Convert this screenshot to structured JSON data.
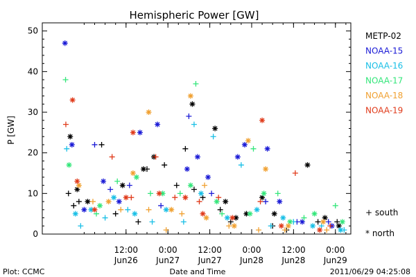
{
  "chart_data": {
    "type": "scatter",
    "title": "Hemispheric Power [GW]",
    "ylabel": "P [GW]",
    "xlabel": "Date and Time",
    "ylim": [
      0,
      52
    ],
    "xlim": [
      "2011-06-25T12:00",
      "2011-06-29T04:25"
    ],
    "yticks": [
      0,
      10,
      20,
      30,
      40,
      50
    ],
    "xticks": [
      {
        "time": "2011-06-26T12:00",
        "line1": "12:00",
        "line2": "Jun26"
      },
      {
        "time": "2011-06-27T00:00",
        "line1": "0:00",
        "line2": "Jun27"
      },
      {
        "time": "2011-06-27T12:00",
        "line1": "12:00",
        "line2": "Jun27"
      },
      {
        "time": "2011-06-28T00:00",
        "line1": "0:00",
        "line2": "Jun28"
      },
      {
        "time": "2011-06-28T12:00",
        "line1": "12:00",
        "line2": "Jun28"
      },
      {
        "time": "2011-06-29T00:00",
        "line1": "0:00",
        "line2": "Jun29"
      }
    ],
    "grid": false,
    "legend_position": "right",
    "marker_legend": [
      {
        "symbol": "+",
        "label": "south"
      },
      {
        "symbol": "*",
        "label": "north"
      }
    ],
    "series": [
      {
        "name": "METP-02",
        "color": "#000000",
        "south": [
          [
            "2011-06-25T19:30",
            10
          ],
          [
            "2011-06-25T21:00",
            7
          ],
          [
            "2011-06-25T22:30",
            8
          ],
          [
            "2011-06-26T05:00",
            22
          ],
          [
            "2011-06-26T09:00",
            5
          ],
          [
            "2011-06-26T15:30",
            3
          ],
          [
            "2011-06-26T18:00",
            16
          ],
          [
            "2011-06-26T23:00",
            17
          ],
          [
            "2011-06-27T02:30",
            12
          ],
          [
            "2011-06-27T05:00",
            21
          ],
          [
            "2011-06-27T07:30",
            11
          ],
          [
            "2011-06-27T10:00",
            9
          ],
          [
            "2011-06-27T15:00",
            6
          ],
          [
            "2011-06-27T18:00",
            3
          ],
          [
            "2011-06-28T06:00",
            2
          ],
          [
            "2011-06-28T10:00",
            1
          ],
          [
            "2011-06-28T19:00",
            3
          ],
          [
            "2011-06-29T00:30",
            3
          ]
        ],
        "north": [
          [
            "2011-06-25T20:00",
            24
          ],
          [
            "2011-06-25T22:00",
            11
          ],
          [
            "2011-06-26T01:00",
            8
          ],
          [
            "2011-06-26T11:00",
            12
          ],
          [
            "2011-06-26T17:00",
            16
          ],
          [
            "2011-06-26T20:00",
            19
          ],
          [
            "2011-06-27T07:00",
            32
          ],
          [
            "2011-06-27T13:30",
            26
          ],
          [
            "2011-06-27T16:30",
            8
          ],
          [
            "2011-06-27T19:30",
            4
          ],
          [
            "2011-06-27T22:30",
            5
          ],
          [
            "2011-06-28T03:00",
            9
          ],
          [
            "2011-06-28T06:30",
            5
          ],
          [
            "2011-06-28T16:00",
            17
          ],
          [
            "2011-06-28T21:00",
            4
          ],
          [
            "2011-06-29T01:00",
            2
          ]
        ]
      },
      {
        "name": "NOAA-15",
        "color": "#1a1ad6",
        "south": [
          [
            "2011-06-26T03:00",
            22
          ],
          [
            "2011-06-26T07:30",
            11
          ],
          [
            "2011-06-26T13:00",
            12
          ],
          [
            "2011-06-26T22:00",
            7
          ],
          [
            "2011-06-27T06:00",
            29
          ],
          [
            "2011-06-27T12:30",
            10
          ],
          [
            "2011-06-28T04:00",
            8
          ],
          [
            "2011-06-28T13:00",
            3
          ],
          [
            "2011-06-28T22:00",
            3
          ]
        ],
        "north": [
          [
            "2011-06-25T18:30",
            47
          ],
          [
            "2011-06-25T20:30",
            22
          ],
          [
            "2011-06-26T00:00",
            6
          ],
          [
            "2011-06-26T05:30",
            13
          ],
          [
            "2011-06-26T10:00",
            8
          ],
          [
            "2011-06-26T16:00",
            25
          ],
          [
            "2011-06-26T21:00",
            27
          ],
          [
            "2011-06-27T05:30",
            16
          ],
          [
            "2011-06-27T08:30",
            19
          ],
          [
            "2011-06-27T11:30",
            14
          ],
          [
            "2011-06-27T20:00",
            19
          ],
          [
            "2011-06-27T22:00",
            22
          ],
          [
            "2011-06-28T04:30",
            21
          ],
          [
            "2011-06-28T08:00",
            8
          ],
          [
            "2011-06-28T14:30",
            3
          ],
          [
            "2011-06-28T23:00",
            2
          ]
        ]
      },
      {
        "name": "NOAA-16",
        "color": "#19bfe6",
        "south": [
          [
            "2011-06-25T19:00",
            21
          ],
          [
            "2011-06-25T23:00",
            2
          ],
          [
            "2011-06-26T06:00",
            4
          ],
          [
            "2011-06-26T12:30",
            6
          ],
          [
            "2011-06-26T19:30",
            3
          ],
          [
            "2011-06-27T04:30",
            3
          ],
          [
            "2011-06-27T07:30",
            27
          ],
          [
            "2011-06-27T13:00",
            24
          ],
          [
            "2011-06-27T21:00",
            17
          ],
          [
            "2011-06-28T05:30",
            2
          ],
          [
            "2011-06-28T12:00",
            3
          ],
          [
            "2011-06-28T20:00",
            2
          ],
          [
            "2011-06-29T02:30",
            1
          ]
        ],
        "north": [
          [
            "2011-06-25T21:30",
            5
          ],
          [
            "2011-06-26T02:00",
            6
          ],
          [
            "2011-06-26T08:30",
            9
          ],
          [
            "2011-06-26T14:30",
            5
          ],
          [
            "2011-06-26T23:30",
            6
          ],
          [
            "2011-06-27T09:30",
            10
          ],
          [
            "2011-06-27T17:00",
            4
          ],
          [
            "2011-06-28T01:30",
            6
          ],
          [
            "2011-06-28T09:00",
            4
          ],
          [
            "2011-06-28T17:30",
            2
          ],
          [
            "2011-06-29T01:30",
            1
          ]
        ]
      },
      {
        "name": "NOAA-17",
        "color": "#33e67a",
        "south": [
          [
            "2011-06-25T18:40",
            38
          ],
          [
            "2011-06-26T03:30",
            5
          ],
          [
            "2011-06-26T09:30",
            13
          ],
          [
            "2011-06-26T19:00",
            10
          ],
          [
            "2011-06-27T03:30",
            10
          ],
          [
            "2011-06-27T08:00",
            37
          ],
          [
            "2011-06-27T15:30",
            5
          ],
          [
            "2011-06-28T00:30",
            21
          ],
          [
            "2011-06-28T07:30",
            10
          ],
          [
            "2011-06-28T15:00",
            4
          ],
          [
            "2011-06-29T00:00",
            7
          ]
        ],
        "north": [
          [
            "2011-06-25T19:40",
            17
          ],
          [
            "2011-06-26T04:30",
            7
          ],
          [
            "2011-06-26T15:00",
            14
          ],
          [
            "2011-06-26T22:30",
            10
          ],
          [
            "2011-06-27T06:30",
            12
          ],
          [
            "2011-06-27T14:00",
            8
          ],
          [
            "2011-06-27T23:30",
            5
          ],
          [
            "2011-06-28T03:30",
            10
          ],
          [
            "2011-06-28T11:00",
            3
          ],
          [
            "2011-06-28T18:00",
            5
          ],
          [
            "2011-06-29T02:00",
            3
          ]
        ]
      },
      {
        "name": "NOAA-18",
        "color": "#f0a030",
        "south": [
          [
            "2011-06-26T02:30",
            8
          ],
          [
            "2011-06-26T10:30",
            6
          ],
          [
            "2011-06-26T18:30",
            6
          ],
          [
            "2011-06-26T23:30",
            1
          ],
          [
            "2011-06-27T04:00",
            5
          ],
          [
            "2011-06-27T10:30",
            12
          ],
          [
            "2011-06-27T17:30",
            2
          ],
          [
            "2011-06-28T02:00",
            1
          ],
          [
            "2011-06-28T09:30",
            1
          ],
          [
            "2011-06-28T21:30",
            1
          ]
        ],
        "north": [
          [
            "2011-06-25T22:30",
            12
          ],
          [
            "2011-06-26T07:00",
            8
          ],
          [
            "2011-06-26T14:00",
            15
          ],
          [
            "2011-06-26T18:30",
            30
          ],
          [
            "2011-06-27T01:00",
            6
          ],
          [
            "2011-06-27T06:30",
            34
          ],
          [
            "2011-06-27T11:00",
            4
          ],
          [
            "2011-06-27T19:00",
            2
          ],
          [
            "2011-06-27T23:00",
            23
          ],
          [
            "2011-06-28T04:00",
            16
          ],
          [
            "2011-06-28T10:30",
            2
          ],
          [
            "2011-06-28T20:30",
            3
          ]
        ]
      },
      {
        "name": "NOAA-19",
        "color": "#e03a1a",
        "south": [
          [
            "2011-06-25T18:45",
            27
          ],
          [
            "2011-06-26T08:00",
            19
          ],
          [
            "2011-06-26T13:30",
            9
          ],
          [
            "2011-06-26T20:30",
            19
          ],
          [
            "2011-06-27T02:00",
            9
          ],
          [
            "2011-06-27T09:00",
            8
          ],
          [
            "2011-06-27T14:30",
            9
          ],
          [
            "2011-06-28T02:30",
            8
          ],
          [
            "2011-06-28T12:30",
            15
          ],
          [
            "2011-06-28T22:30",
            2
          ]
        ],
        "north": [
          [
            "2011-06-25T20:40",
            33
          ],
          [
            "2011-06-25T22:00",
            13
          ],
          [
            "2011-06-26T03:00",
            6
          ],
          [
            "2011-06-26T12:00",
            9
          ],
          [
            "2011-06-26T14:00",
            25
          ],
          [
            "2011-06-26T21:30",
            10
          ],
          [
            "2011-06-27T05:00",
            9
          ],
          [
            "2011-06-27T10:00",
            5
          ],
          [
            "2011-06-27T18:30",
            4
          ],
          [
            "2011-06-28T03:00",
            28
          ],
          [
            "2011-06-28T08:30",
            2
          ],
          [
            "2011-06-28T19:30",
            1
          ]
        ]
      }
    ]
  },
  "footer": {
    "left": "Plot: CCMC",
    "center": "Date and Time",
    "right": "2011/06/29 04:25:08"
  }
}
